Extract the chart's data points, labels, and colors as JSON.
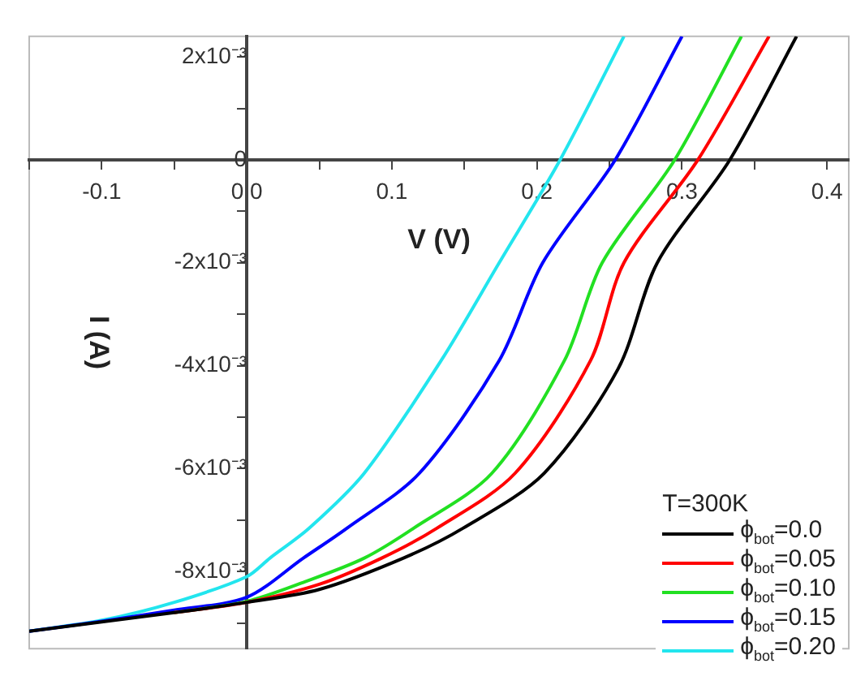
{
  "chart_data": {
    "type": "line",
    "xlabel": "V (V)",
    "ylabel": "I (A)",
    "legend_title": "T=300K",
    "legend": "bottom right",
    "marker": "none",
    "line_style": "solid",
    "xlim": [
      -0.15,
      0.415
    ],
    "ylim": [
      -0.0095,
      0.0024
    ],
    "xticks": [
      {
        "value": -0.15,
        "label": null
      },
      {
        "value": -0.1,
        "label": "-0.1"
      },
      {
        "value": -0.05,
        "label": null
      },
      {
        "value": 0,
        "label": "0.0"
      },
      {
        "value": 0.05,
        "label": null
      },
      {
        "value": 0.1,
        "label": "0.1"
      },
      {
        "value": 0.15,
        "label": null
      },
      {
        "value": 0.2,
        "label": "0.2"
      },
      {
        "value": 0.25,
        "label": null
      },
      {
        "value": 0.3,
        "label": "0.3"
      },
      {
        "value": 0.35,
        "label": null
      },
      {
        "value": 0.4,
        "label": "0.4"
      }
    ],
    "yticks": [
      {
        "value": 0.002,
        "label": "2x10⁻³"
      },
      {
        "value": 0.001,
        "label": null
      },
      {
        "value": 0,
        "label": "0"
      },
      {
        "value": -0.001,
        "label": null
      },
      {
        "value": -0.002,
        "label": "-2x10⁻³"
      },
      {
        "value": -0.003,
        "label": null
      },
      {
        "value": -0.004,
        "label": "-4x10⁻³"
      },
      {
        "value": -0.005,
        "label": null
      },
      {
        "value": -0.006,
        "label": "-6x10⁻³"
      },
      {
        "value": -0.007,
        "label": null
      },
      {
        "value": -0.008,
        "label": "-8x10⁻³"
      },
      {
        "value": -0.009,
        "label": null
      }
    ],
    "series": [
      {
        "name": "ϕ$_{bot}$=0.0",
        "color": "#000000",
        "x": [
          -0.15,
          -0.1,
          -0.05,
          0,
          0.05,
          0.108,
          0.149,
          0.205,
          0.256,
          0.283,
          0.333,
          0.379
        ],
        "values": [
          -0.00916,
          -0.00898,
          -0.0088,
          -0.0086,
          -0.00835,
          -0.00774,
          -0.00716,
          -0.00609,
          -0.00406,
          -0.002,
          0,
          0.0024
        ]
      },
      {
        "name": "ϕ$_{bot}$=0.05",
        "color": "#ff0000",
        "x": [
          -0.05,
          0,
          0.05,
          0.093,
          0.131,
          0.185,
          0.237,
          0.26,
          0.311,
          0.36
        ],
        "values": [
          -0.0088,
          -0.0086,
          -0.00825,
          -0.00774,
          -0.00716,
          -0.00609,
          -0.0039,
          -0.002,
          0,
          0.0024
        ]
      },
      {
        "name": "ϕ$_{bot}$=0.10",
        "color": "#22e022",
        "x": [
          -0.05,
          0,
          0.04,
          0.081,
          0.115,
          0.169,
          0.219,
          0.245,
          0.295,
          0.341
        ],
        "values": [
          -0.0088,
          -0.00858,
          -0.0082,
          -0.00774,
          -0.00716,
          -0.00609,
          -0.0039,
          -0.002,
          0,
          0.0024
        ]
      },
      {
        "name": "ϕ$_{bot}$=0.15",
        "color": "#0000ff",
        "x": [
          -0.15,
          -0.1,
          -0.05,
          0,
          0.039,
          0.069,
          0.119,
          0.174,
          0.204,
          0.254,
          0.3
        ],
        "values": [
          -0.00916,
          -0.00897,
          -0.00875,
          -0.0085,
          -0.00774,
          -0.00716,
          -0.00609,
          -0.0039,
          -0.002,
          0,
          0.0024
        ]
      },
      {
        "name": "ϕ$_{bot}$=0.20",
        "color": "#22e5ee",
        "x": [
          -0.15,
          -0.1,
          -0.05,
          0,
          0.016,
          0.043,
          0.081,
          0.134,
          0.174,
          0.216,
          0.26
        ],
        "values": [
          -0.00916,
          -0.00895,
          -0.0086,
          -0.0081,
          -0.00774,
          -0.00716,
          -0.00609,
          -0.0039,
          -0.002,
          0,
          0.0024
        ]
      }
    ]
  }
}
